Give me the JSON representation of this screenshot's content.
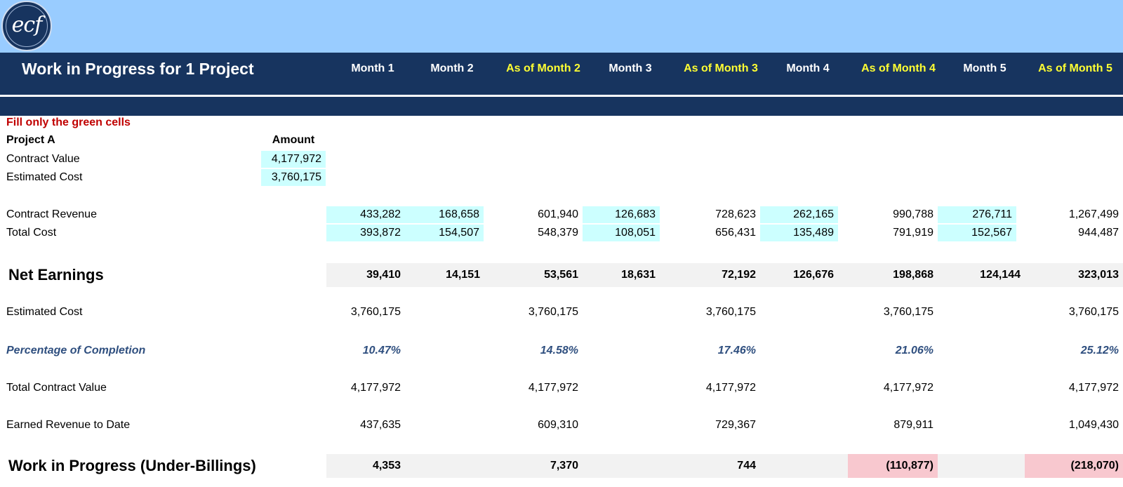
{
  "header": {
    "logo_text": "ecf",
    "title": "Work in Progress for 1 Project",
    "columns": [
      "Month 1",
      "Month 2",
      "As of Month 2",
      "Month 3",
      "As of Month 3",
      "Month 4",
      "As of Month 4",
      "Month 5",
      "As of Month 5"
    ]
  },
  "inputs": {
    "note": "Fill only the green cells",
    "project_label": "Project A",
    "amount_label": "Amount",
    "contract_value_label": "Contract Value",
    "contract_value": "4,177,972",
    "estimated_cost_label": "Estimated Cost",
    "estimated_cost": "3,760,175"
  },
  "rows": {
    "contract_revenue": {
      "label": "Contract Revenue",
      "values": [
        "433,282",
        "168,658",
        "601,940",
        "126,683",
        "728,623",
        "262,165",
        "990,788",
        "276,711",
        "1,267,499"
      ]
    },
    "total_cost": {
      "label": "Total Cost",
      "values": [
        "393,872",
        "154,507",
        "548,379",
        "108,051",
        "656,431",
        "135,489",
        "791,919",
        "152,567",
        "944,487"
      ]
    },
    "net_earnings": {
      "label": "Net Earnings",
      "values": [
        "39,410",
        "14,151",
        "53,561",
        "18,631",
        "72,192",
        "126,676",
        "198,868",
        "124,144",
        "323,013"
      ]
    },
    "estimated_cost": {
      "label": "Estimated Cost",
      "values": [
        "3,760,175",
        "3,760,175",
        "3,760,175",
        "3,760,175",
        "3,760,175"
      ]
    },
    "pct_completion": {
      "label": "Percentage of Completion",
      "values": [
        "10.47%",
        "14.58%",
        "17.46%",
        "21.06%",
        "25.12%"
      ]
    },
    "total_contract_value": {
      "label": "Total Contract Value",
      "values": [
        "4,177,972",
        "4,177,972",
        "4,177,972",
        "4,177,972",
        "4,177,972"
      ]
    },
    "earned_revenue": {
      "label": "Earned Revenue to Date",
      "values": [
        "437,635",
        "609,310",
        "729,367",
        "879,911",
        "1,049,430"
      ]
    },
    "wip": {
      "label": "Work in Progress (Under-Billings)",
      "values": [
        "4,353",
        "7,370",
        "744",
        "(110,877)",
        "(218,070)"
      ]
    }
  },
  "colors": {
    "header_navy": "#17345f",
    "top_band": "#99ccff",
    "input_green": "#ccffff",
    "cumulative_header": "#ffff33",
    "negative_fill": "#f8c8cf",
    "note_red": "#c00000"
  }
}
